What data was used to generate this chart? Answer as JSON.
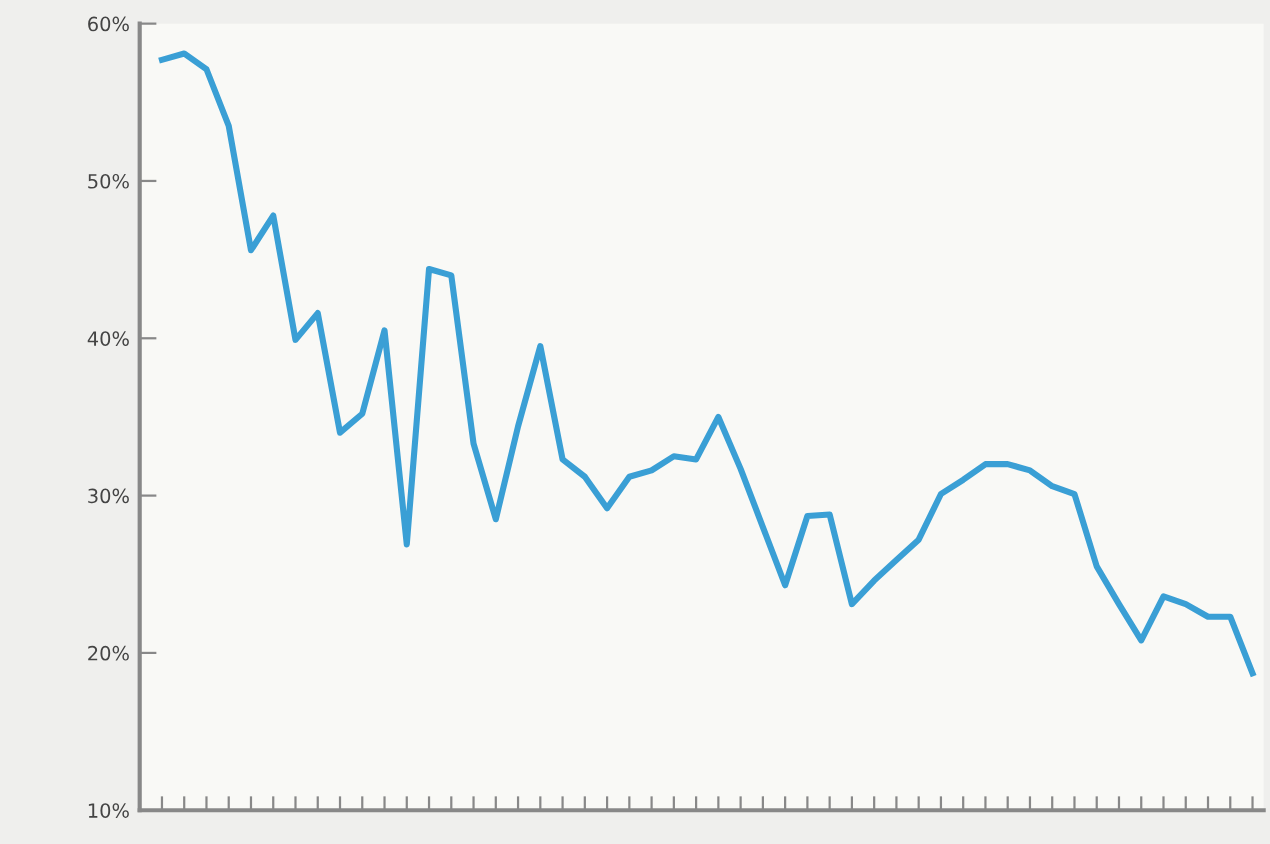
{
  "chart_data": {
    "type": "line",
    "categories": [
      null,
      null,
      null,
      null,
      null,
      null,
      null,
      null,
      null,
      null,
      null,
      null,
      null,
      null,
      null,
      null,
      null,
      null,
      null,
      null,
      null,
      null,
      null,
      null,
      null,
      null,
      null,
      null,
      null,
      null,
      null,
      null,
      null,
      null,
      null,
      null,
      null,
      null,
      null,
      null,
      null,
      null,
      null,
      null,
      null,
      null,
      null,
      null,
      null,
      null
    ],
    "series": [
      {
        "color": "#3a9fd5",
        "values": [
          57.7,
          58.1,
          57.1,
          53.5,
          45.6,
          47.8,
          39.9,
          41.6,
          34.0,
          35.2,
          40.5,
          26.9,
          44.4,
          44.0,
          33.3,
          28.5,
          34.4,
          39.5,
          32.3,
          31.2,
          29.2,
          31.2,
          31.6,
          32.5,
          32.3,
          35.0,
          31.7,
          28.0,
          24.3,
          28.7,
          28.8,
          23.1,
          24.6,
          25.9,
          27.2,
          30.1,
          31.0,
          32.0,
          32.0,
          31.6,
          30.6,
          30.1,
          25.5,
          23.1,
          20.8,
          23.6,
          23.1,
          22.3,
          22.3,
          18.7
        ]
      }
    ],
    "ylim": [
      10,
      60
    ],
    "yticks": [
      {
        "value": 10,
        "label": "10%"
      },
      {
        "value": 20,
        "label": "20%"
      },
      {
        "value": 30,
        "label": "30%"
      },
      {
        "value": 40,
        "label": "40%"
      },
      {
        "value": 50,
        "label": "50%"
      },
      {
        "value": 60,
        "label": "60%"
      }
    ],
    "grid": false,
    "marker": "none",
    "line_style": "solid"
  }
}
